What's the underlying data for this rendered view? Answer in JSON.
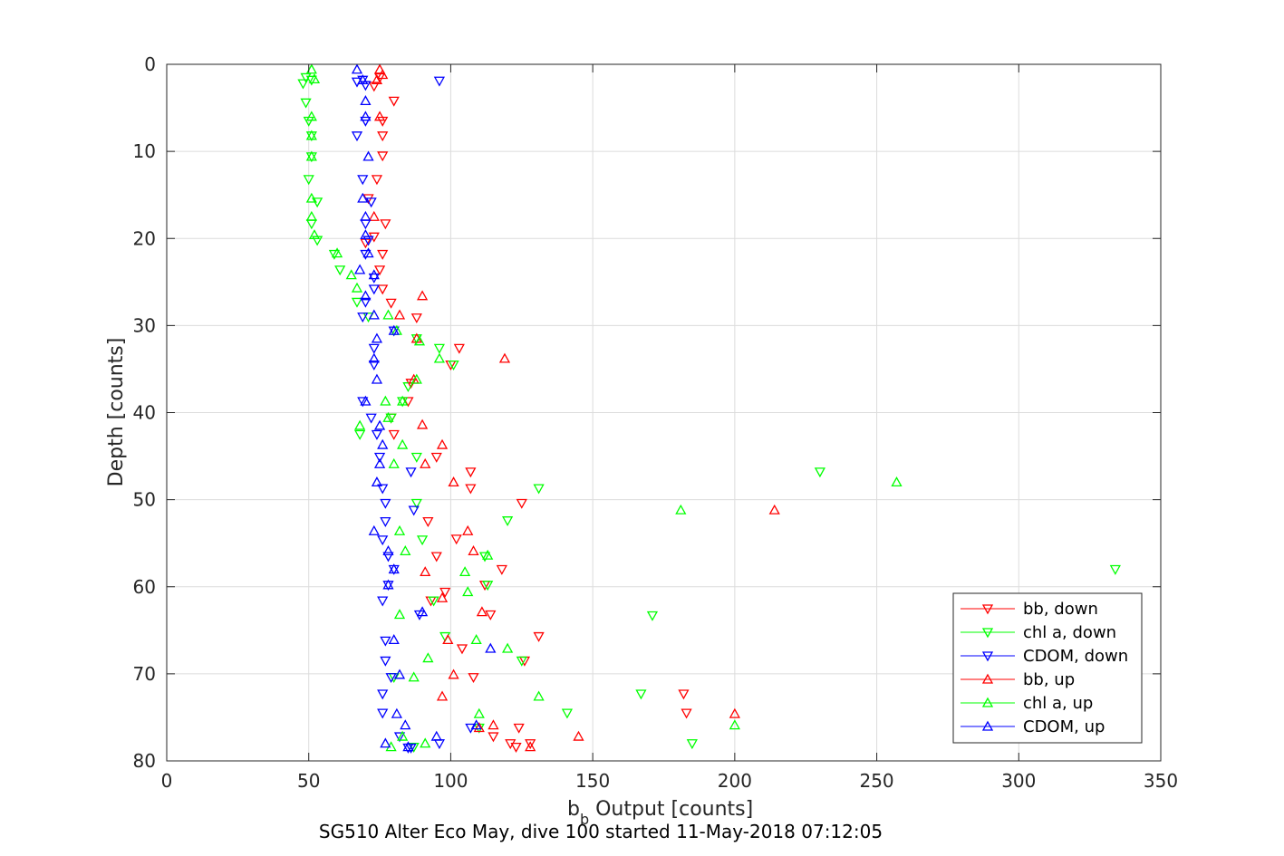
{
  "chart_data": {
    "type": "scatter",
    "title": "",
    "caption": "SG510 Alter Eco May, dive 100 started 11-May-2018 07:12:05",
    "xlabel_main": "b",
    "xlabel_sub": "b",
    "xlabel_rest": " Output [counts]",
    "ylabel": "Depth [counts]",
    "xlim": [
      0,
      350
    ],
    "ylim": [
      0,
      80
    ],
    "y_reversed": true,
    "x_ticks": [
      0,
      50,
      100,
      150,
      200,
      250,
      300,
      350
    ],
    "y_ticks": [
      0,
      10,
      20,
      30,
      40,
      50,
      60,
      70,
      80
    ],
    "grid": true,
    "legend_position": "bottom-right",
    "colors": {
      "red": "#ff0000",
      "green": "#00ff00",
      "blue": "#0000ff"
    },
    "series": [
      {
        "name": "bb, down",
        "marker": "triangle-down",
        "color": "#ff0000",
        "points": [
          [
            75,
            1.5
          ],
          [
            73,
            2.5
          ],
          [
            80,
            4.2
          ],
          [
            76,
            6.5
          ],
          [
            76,
            8.2
          ],
          [
            76,
            10.5
          ],
          [
            74,
            13.2
          ],
          [
            71,
            15.4
          ],
          [
            77,
            18.3
          ],
          [
            73,
            19.8
          ],
          [
            70,
            20.5
          ],
          [
            76,
            21.8
          ],
          [
            75,
            23.6
          ],
          [
            76,
            25.8
          ],
          [
            79,
            27.4
          ],
          [
            88,
            29.1
          ],
          [
            103,
            32.6
          ],
          [
            100,
            34.5
          ],
          [
            86,
            36.6
          ],
          [
            85,
            38.7
          ],
          [
            79,
            40.6
          ],
          [
            80,
            42.5
          ],
          [
            95,
            45.1
          ],
          [
            107,
            46.8
          ],
          [
            107,
            48.7
          ],
          [
            125,
            50.4
          ],
          [
            92,
            52.5
          ],
          [
            102,
            54.5
          ],
          [
            95,
            56.5
          ],
          [
            118,
            58.0
          ],
          [
            112,
            59.8
          ],
          [
            98,
            60.6
          ],
          [
            93,
            61.6
          ],
          [
            114,
            63.2
          ],
          [
            131,
            65.7
          ],
          [
            104,
            67.1
          ],
          [
            126,
            68.5
          ],
          [
            108,
            70.4
          ],
          [
            182,
            72.3
          ],
          [
            183,
            74.5
          ],
          [
            124,
            76.2
          ],
          [
            115,
            77.2
          ],
          [
            121,
            78.0
          ],
          [
            123,
            78.4
          ],
          [
            128,
            78.0
          ]
        ]
      },
      {
        "name": "chl a, down",
        "marker": "triangle-down",
        "color": "#00ff00",
        "points": [
          [
            49,
            1.5
          ],
          [
            48,
            2.2
          ],
          [
            51,
            1.8
          ],
          [
            49,
            4.4
          ],
          [
            50,
            6.5
          ],
          [
            51,
            8.2
          ],
          [
            51,
            10.6
          ],
          [
            50,
            13.2
          ],
          [
            53,
            15.8
          ],
          [
            51,
            18.3
          ],
          [
            53,
            20.2
          ],
          [
            59,
            21.8
          ],
          [
            61,
            23.6
          ],
          [
            67,
            27.3
          ],
          [
            71,
            29.0
          ],
          [
            88,
            31.5
          ],
          [
            96,
            32.6
          ],
          [
            101,
            34.5
          ],
          [
            85,
            37.0
          ],
          [
            83,
            38.7
          ],
          [
            79,
            40.6
          ],
          [
            68,
            42.5
          ],
          [
            88,
            45.1
          ],
          [
            131,
            48.7
          ],
          [
            230,
            46.8
          ],
          [
            88,
            50.4
          ],
          [
            120,
            52.4
          ],
          [
            90,
            54.6
          ],
          [
            112,
            56.5
          ],
          [
            334,
            58.0
          ],
          [
            113,
            59.8
          ],
          [
            94,
            61.6
          ],
          [
            171,
            63.3
          ],
          [
            98,
            65.7
          ],
          [
            125,
            68.5
          ],
          [
            80,
            70.4
          ],
          [
            167,
            72.3
          ],
          [
            141,
            74.5
          ],
          [
            110,
            76.2
          ],
          [
            185,
            78.0
          ],
          [
            87,
            78.4
          ]
        ]
      },
      {
        "name": "CDOM, down",
        "marker": "triangle-down",
        "color": "#0000ff",
        "points": [
          [
            69,
            1.8
          ],
          [
            67,
            2.0
          ],
          [
            70,
            2.4
          ],
          [
            96,
            1.9
          ],
          [
            70,
            6.5
          ],
          [
            67,
            8.2
          ],
          [
            69,
            13.2
          ],
          [
            72,
            15.8
          ],
          [
            70,
            18.3
          ],
          [
            71,
            20.2
          ],
          [
            70,
            21.8
          ],
          [
            73,
            24.5
          ],
          [
            73,
            25.8
          ],
          [
            70,
            27.3
          ],
          [
            69,
            29.0
          ],
          [
            80,
            30.6
          ],
          [
            73,
            32.6
          ],
          [
            73,
            34.5
          ],
          [
            69,
            38.7
          ],
          [
            72,
            40.6
          ],
          [
            74,
            42.5
          ],
          [
            75,
            45.1
          ],
          [
            86,
            46.8
          ],
          [
            76,
            48.7
          ],
          [
            77,
            50.4
          ],
          [
            87,
            51.2
          ],
          [
            77,
            52.5
          ],
          [
            76,
            54.6
          ],
          [
            78,
            56.5
          ],
          [
            80,
            58.0
          ],
          [
            78,
            59.8
          ],
          [
            76,
            61.6
          ],
          [
            89,
            63.2
          ],
          [
            77,
            66.2
          ],
          [
            77,
            68.5
          ],
          [
            79,
            70.4
          ],
          [
            76,
            72.3
          ],
          [
            76,
            74.5
          ],
          [
            107,
            76.2
          ],
          [
            82,
            77.2
          ],
          [
            86,
            78.5
          ],
          [
            96,
            78.0
          ],
          [
            85,
            78.5
          ]
        ]
      },
      {
        "name": "bb, up",
        "marker": "triangle-up",
        "color": "#ff0000",
        "points": [
          [
            75,
            0.6
          ],
          [
            76,
            1.2
          ],
          [
            74,
            1.8
          ],
          [
            75,
            6.0
          ],
          [
            73,
            17.5
          ],
          [
            90,
            26.6
          ],
          [
            82,
            28.8
          ],
          [
            88,
            31.5
          ],
          [
            119,
            33.8
          ],
          [
            87,
            36.2
          ],
          [
            90,
            41.4
          ],
          [
            97,
            43.7
          ],
          [
            91,
            45.9
          ],
          [
            101,
            48.0
          ],
          [
            214,
            51.2
          ],
          [
            106,
            53.6
          ],
          [
            108,
            55.9
          ],
          [
            91,
            58.3
          ],
          [
            97,
            61.3
          ],
          [
            111,
            62.9
          ],
          [
            99,
            66.1
          ],
          [
            101,
            70.1
          ],
          [
            97,
            72.6
          ],
          [
            200,
            74.6
          ],
          [
            115,
            75.9
          ],
          [
            145,
            77.2
          ],
          [
            128,
            78.4
          ],
          [
            110,
            76.2
          ]
        ]
      },
      {
        "name": "chl a, up",
        "marker": "triangle-up",
        "color": "#00ff00",
        "points": [
          [
            51,
            0.6
          ],
          [
            52,
            1.7
          ],
          [
            51,
            6.0
          ],
          [
            51,
            8.2
          ],
          [
            51,
            10.6
          ],
          [
            51,
            15.4
          ],
          [
            51,
            17.5
          ],
          [
            52,
            19.6
          ],
          [
            60,
            21.7
          ],
          [
            65,
            24.2
          ],
          [
            67,
            25.7
          ],
          [
            78,
            28.8
          ],
          [
            81,
            30.6
          ],
          [
            89,
            31.8
          ],
          [
            96,
            33.8
          ],
          [
            88,
            36.2
          ],
          [
            77,
            38.7
          ],
          [
            83,
            38.7
          ],
          [
            78,
            40.6
          ],
          [
            68,
            41.5
          ],
          [
            83,
            43.7
          ],
          [
            80,
            45.9
          ],
          [
            257,
            48.0
          ],
          [
            181,
            51.2
          ],
          [
            82,
            53.6
          ],
          [
            84,
            55.9
          ],
          [
            105,
            58.3
          ],
          [
            113,
            56.4
          ],
          [
            106,
            60.6
          ],
          [
            82,
            63.2
          ],
          [
            109,
            66.1
          ],
          [
            120,
            67.1
          ],
          [
            92,
            68.2
          ],
          [
            87,
            70.4
          ],
          [
            131,
            72.6
          ],
          [
            110,
            74.6
          ],
          [
            200,
            75.9
          ],
          [
            83,
            77.2
          ],
          [
            79,
            78.4
          ],
          [
            91,
            78.0
          ]
        ]
      },
      {
        "name": "CDOM, up",
        "marker": "triangle-up",
        "color": "#0000ff",
        "points": [
          [
            67,
            0.6
          ],
          [
            69,
            1.8
          ],
          [
            70,
            4.2
          ],
          [
            70,
            6.0
          ],
          [
            71,
            10.6
          ],
          [
            69,
            15.4
          ],
          [
            70,
            17.5
          ],
          [
            70,
            19.6
          ],
          [
            71,
            21.7
          ],
          [
            68,
            23.6
          ],
          [
            73,
            24.2
          ],
          [
            70,
            26.6
          ],
          [
            73,
            28.8
          ],
          [
            80,
            30.6
          ],
          [
            74,
            31.5
          ],
          [
            73,
            33.8
          ],
          [
            74,
            36.2
          ],
          [
            70,
            38.7
          ],
          [
            75,
            41.5
          ],
          [
            76,
            43.7
          ],
          [
            75,
            45.9
          ],
          [
            74,
            48.0
          ],
          [
            73,
            53.6
          ],
          [
            78,
            55.9
          ],
          [
            80,
            58.0
          ],
          [
            78,
            59.8
          ],
          [
            90,
            62.9
          ],
          [
            80,
            66.1
          ],
          [
            114,
            67.1
          ],
          [
            82,
            70.1
          ],
          [
            84,
            75.9
          ],
          [
            81,
            74.6
          ],
          [
            85,
            78.4
          ],
          [
            77,
            78.0
          ],
          [
            95,
            77.2
          ],
          [
            109,
            75.9
          ]
        ]
      }
    ]
  }
}
